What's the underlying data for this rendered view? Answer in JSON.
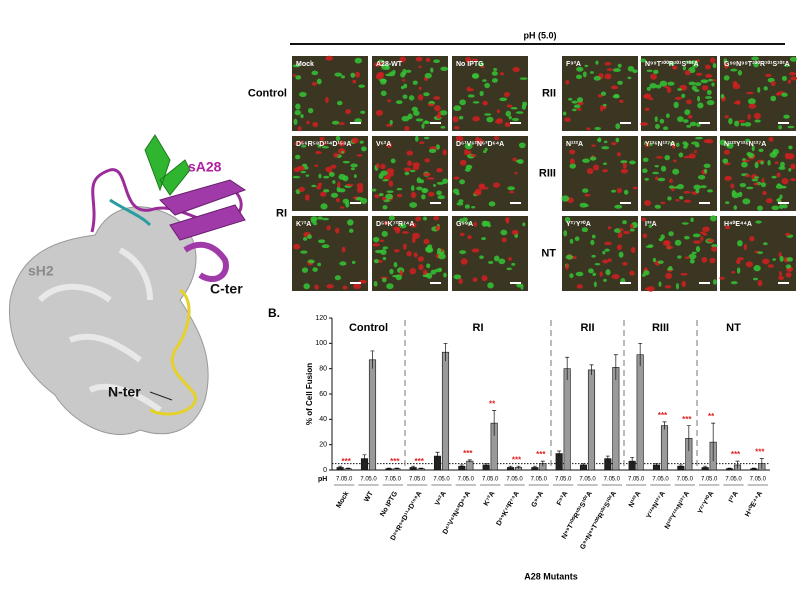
{
  "structure": {
    "ligand": "sA28",
    "receptor": "sH2",
    "c_terminus": "C-ter",
    "n_terminus": "N-ter"
  },
  "micrographs": {
    "header": "pH (5.0)",
    "rows": [
      {
        "label": "Control",
        "panels": [
          "Mock",
          "A28-WT",
          "No IPTG"
        ]
      },
      {
        "label": "RI",
        "panels": [
          "D⁵⁶R⁵⁸D¹¹⁴D¹⁵⁸A",
          "V⁶²A",
          "D⁶¹V⁶²N⁶³D⁶⁴A",
          "K⁷²A",
          "D⁵⁹K⁷²R⁷⁴A",
          "G⁹⁸A"
        ]
      },
      {
        "label": "RII",
        "panels": [
          "F⁹³A",
          "N⁹⁹T¹⁰⁰R¹⁰¹S¹⁰²A",
          "G⁹⁸N⁹⁹T¹⁰⁰R¹⁰¹S¹⁰²A"
        ]
      },
      {
        "label": "RIII",
        "panels": [
          "N¹²²A",
          "Y¹²⁶N¹²⁷A",
          "N¹²²Y¹²⁶N¹²⁷A"
        ]
      },
      {
        "label": "NT",
        "panels": [
          "Y²⁷Y³⁰A",
          "I³³A",
          "H⁴⁰E⁴⁴A"
        ]
      }
    ]
  },
  "chart_data": {
    "type": "bar",
    "panel_label": "B.",
    "y_label": "% of Cell Fusion",
    "x_label": "A28 Mutants",
    "x_row_label": "pH",
    "groups": [
      {
        "name": "Control",
        "categories": [
          "Mock",
          "WT",
          "No IPTG"
        ]
      },
      {
        "name": "RI",
        "categories": [
          "D⁵⁶R⁵⁸D¹¹⁴D¹⁵⁸A",
          "V⁶²A",
          "D⁶¹V⁶²N⁶³D⁶⁴A",
          "K⁷²A",
          "D⁵⁹K⁷²R⁷⁴A",
          "G⁹⁸A"
        ]
      },
      {
        "name": "RII",
        "categories": [
          "F⁹³A",
          "N⁹⁹T¹⁰⁰R¹⁰¹S¹⁰²A",
          "G⁹⁸N⁹⁹T¹⁰⁰R¹⁰¹S¹⁰²A"
        ]
      },
      {
        "name": "RIII",
        "categories": [
          "N¹²²A",
          "Y¹²⁶N¹²⁷A",
          "N¹²²Y¹²⁶N¹²⁷A"
        ]
      },
      {
        "name": "NT",
        "categories": [
          "Y²⁷Y³⁰A",
          "I³³A",
          "H⁴⁰E⁴⁴A"
        ]
      }
    ],
    "series": [
      {
        "name": "7.0",
        "color": "#222222",
        "values": [
          2,
          9,
          1,
          2,
          11,
          3,
          4,
          2,
          2,
          13,
          4,
          9,
          7,
          4,
          3,
          2,
          1,
          1
        ],
        "errors": [
          1,
          3,
          0.5,
          1,
          3,
          1,
          1,
          1,
          1,
          2,
          1,
          2,
          3,
          1,
          1,
          1,
          0.5,
          0.5
        ]
      },
      {
        "name": "5.0",
        "color": "#9a9a9a",
        "values": [
          1,
          87,
          1,
          1,
          93,
          7,
          37,
          2,
          5,
          80,
          79,
          81,
          91,
          35,
          25,
          22,
          4,
          5
        ],
        "errors": [
          0.5,
          7,
          0.5,
          0.5,
          7,
          1,
          10,
          1,
          2,
          9,
          4,
          10,
          9,
          3,
          10,
          15,
          3,
          4
        ]
      }
    ],
    "significance": [
      "***",
      null,
      "***",
      "***",
      null,
      "***",
      "**",
      "***",
      "***",
      null,
      null,
      null,
      null,
      "***",
      "***",
      "**",
      "***",
      "***"
    ],
    "reference_line": 5,
    "ylim": [
      0,
      120
    ],
    "yticks": [
      0,
      20,
      40,
      60,
      80,
      100,
      120
    ],
    "significance_color": "#e02020"
  }
}
